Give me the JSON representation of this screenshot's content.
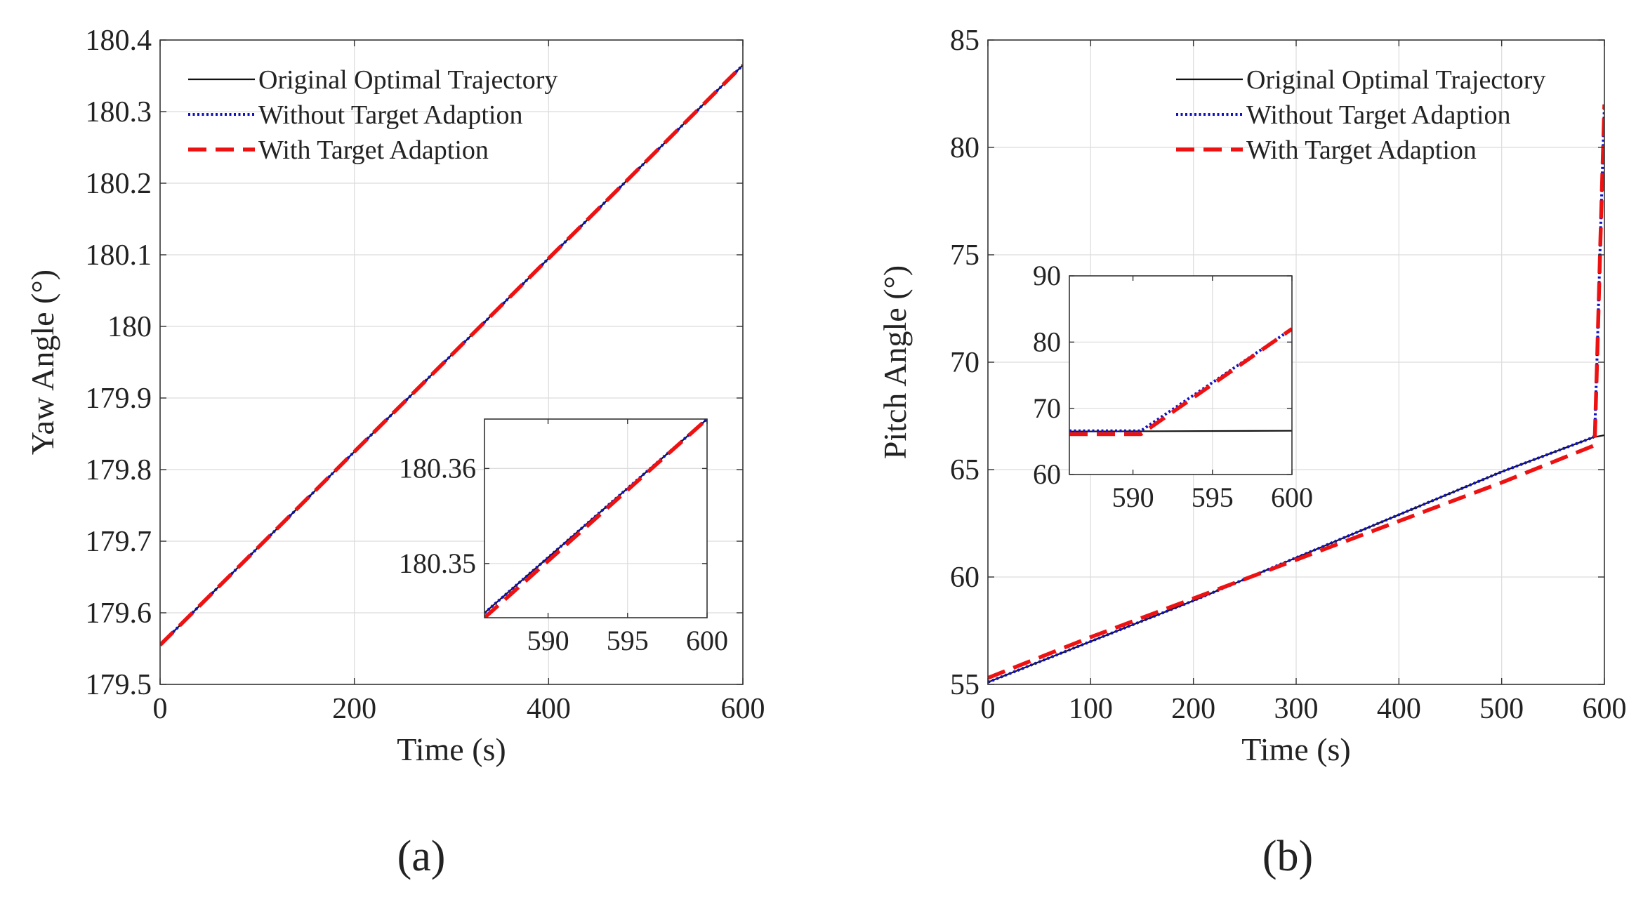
{
  "colors": {
    "original": "#111111",
    "without": "#1010c8",
    "with": "#ee1111",
    "grid": "#dcdcdc",
    "axis": "#333333"
  },
  "legend_labels": [
    "Original Optimal Trajectory",
    "Without Target Adaption",
    "With Target Adaption"
  ],
  "panel_a_label": "(a)",
  "panel_b_label": "(b)",
  "chart_data": [
    {
      "type": "line",
      "id": "yaw",
      "title": "",
      "xlabel": "Time (s)",
      "ylabel": "Yaw Angle (°)",
      "xlim": [
        0,
        600
      ],
      "ylim": [
        179.5,
        180.4
      ],
      "xticks": [
        0,
        200,
        400,
        600
      ],
      "xtick_labels": [
        "0",
        "200",
        "400",
        "600"
      ],
      "yticks": [
        179.5,
        179.6,
        179.7,
        179.8,
        179.9,
        180.0,
        180.1,
        180.2,
        180.3,
        180.4
      ],
      "ytick_labels": [
        "179.5",
        "179.6",
        "179.7",
        "179.8",
        "179.9",
        "180",
        "180.1",
        "180.2",
        "180.3",
        "180.4"
      ],
      "grid": true,
      "legend": "top-left",
      "series": [
        {
          "name": "Original Optimal Trajectory",
          "style": "solid",
          "x": [
            0,
            600
          ],
          "y": [
            179.555,
            180.365
          ]
        },
        {
          "name": "Without Target Adaption",
          "style": "dotted",
          "x": [
            0,
            600
          ],
          "y": [
            179.555,
            180.365
          ]
        },
        {
          "name": "With Target Adaption",
          "style": "dashed",
          "x": [
            0,
            600
          ],
          "y": [
            179.555,
            180.365
          ]
        }
      ],
      "inset": {
        "xlim": [
          586,
          600
        ],
        "ylim": [
          180.3443,
          180.3652
        ],
        "xticks": [
          590,
          595,
          600
        ],
        "xtick_labels": [
          "590",
          "595",
          "600"
        ],
        "yticks": [
          180.35,
          180.36
        ],
        "ytick_labels": [
          "180.35",
          "180.36"
        ],
        "series": [
          {
            "name": "Original Optimal Trajectory",
            "style": "solid",
            "x": [
              586,
              600
            ],
            "y": [
              180.3448,
              180.3652
            ]
          },
          {
            "name": "Without Target Adaption",
            "style": "dotted",
            "x": [
              586,
              600
            ],
            "y": [
              180.3448,
              180.3652
            ]
          },
          {
            "name": "With Target Adaption",
            "style": "dashed",
            "x": [
              586,
              600
            ],
            "y": [
              180.3443,
              180.3652
            ]
          }
        ]
      }
    },
    {
      "type": "line",
      "id": "pitch",
      "title": "",
      "xlabel": "Time (s)",
      "ylabel": "Pitch Angle (°)",
      "xlim": [
        0,
        600
      ],
      "ylim": [
        55,
        85
      ],
      "xticks": [
        0,
        100,
        200,
        300,
        400,
        500,
        600
      ],
      "xtick_labels": [
        "0",
        "100",
        "200",
        "300",
        "400",
        "500",
        "600"
      ],
      "yticks": [
        55,
        60,
        65,
        70,
        75,
        80,
        85
      ],
      "ytick_labels": [
        "55",
        "60",
        "65",
        "70",
        "75",
        "80",
        "85"
      ],
      "grid": true,
      "legend": "top-right",
      "series": [
        {
          "name": "Original Optimal Trajectory",
          "style": "solid",
          "x": [
            0,
            100,
            200,
            300,
            400,
            500,
            589,
            600
          ],
          "y": [
            55.1,
            57.0,
            58.9,
            60.9,
            62.9,
            64.9,
            66.5,
            66.6
          ]
        },
        {
          "name": "Without Target Adaption",
          "style": "dotted",
          "x": [
            0,
            100,
            200,
            300,
            400,
            500,
            589,
            590.5,
            593,
            596,
            600
          ],
          "y": [
            55.1,
            57.0,
            58.9,
            60.9,
            62.9,
            64.9,
            66.5,
            66.6,
            70.5,
            75.6,
            82.0
          ]
        },
        {
          "name": "With Target Adaption",
          "style": "dashed",
          "x": [
            0,
            100,
            200,
            300,
            400,
            500,
            589,
            590.5,
            593,
            596,
            600
          ],
          "y": [
            55.3,
            57.2,
            59.0,
            60.8,
            62.6,
            64.4,
            66.1,
            66.2,
            70.3,
            75.4,
            82.0
          ]
        }
      ],
      "inset": {
        "xlim": [
          586,
          600
        ],
        "ylim": [
          60,
          90
        ],
        "xticks": [
          590,
          595,
          600
        ],
        "xtick_labels": [
          "590",
          "595",
          "600"
        ],
        "yticks": [
          60,
          70,
          80,
          90
        ],
        "ytick_labels": [
          "60",
          "70",
          "80",
          "90"
        ],
        "series": [
          {
            "name": "Original Optimal Trajectory",
            "style": "solid",
            "x": [
              586,
              600
            ],
            "y": [
              66.5,
              66.6
            ]
          },
          {
            "name": "Without Target Adaption",
            "style": "dotted",
            "x": [
              586,
              590.5,
              600
            ],
            "y": [
              66.6,
              66.6,
              82.0
            ]
          },
          {
            "name": "With Target Adaption",
            "style": "dashed",
            "x": [
              586,
              590.5,
              600
            ],
            "y": [
              66.1,
              66.1,
              82.0
            ]
          }
        ]
      }
    }
  ]
}
